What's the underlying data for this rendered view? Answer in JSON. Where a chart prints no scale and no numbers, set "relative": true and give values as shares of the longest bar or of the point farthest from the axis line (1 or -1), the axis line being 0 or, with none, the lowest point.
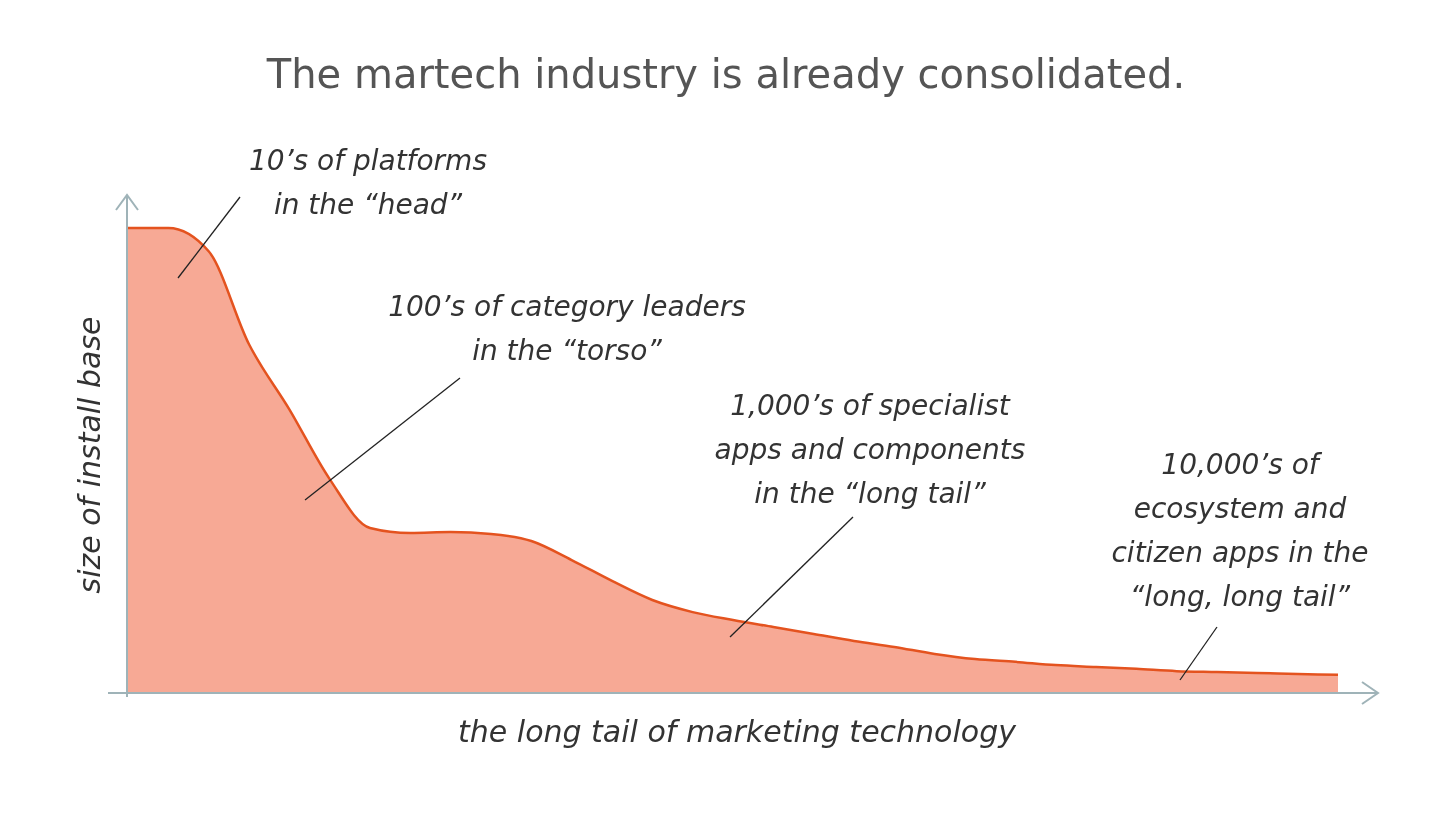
{
  "chart_data": {
    "type": "area",
    "title": "The martech industry is already consolidated.",
    "xlabel": "the long tail of marketing technology",
    "ylabel": "size of install base",
    "relative": true,
    "color": "#f6a08a",
    "categories": [
      null,
      null,
      null,
      null,
      null,
      null,
      null,
      null,
      null,
      null,
      null,
      null,
      null,
      null,
      null,
      null,
      null,
      null,
      null,
      null,
      null,
      null,
      null,
      null,
      null,
      null,
      null,
      null,
      null,
      null,
      null
    ],
    "values": [
      1,
      1,
      0.95,
      0.75,
      0.61,
      0.46,
      0.355,
      0.344,
      0.346,
      0.342,
      0.327,
      0.286,
      0.241,
      0.2,
      0.174,
      0.157,
      0.142,
      0.127,
      0.112,
      0.099,
      0.084,
      0.073,
      0.067,
      0.06,
      0.056,
      0.052,
      0.047,
      0.045,
      0.043,
      0.041,
      0.039
    ],
    "annotations": [
      "10’s of platforms\nin the “head”",
      "100’s of category leaders\nin the “torso”",
      "1,000’s of specialist\napps and components\nin the “long tail”",
      "10,000’s of\necosystem and\ncitizen apps in the\n“long, long tail”"
    ]
  }
}
